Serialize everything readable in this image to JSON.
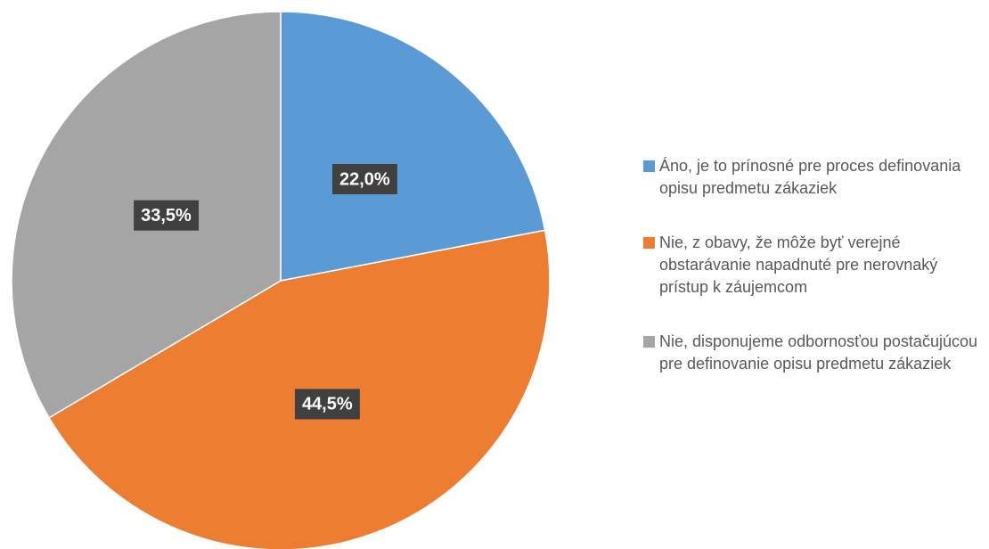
{
  "chart_data": {
    "type": "pie",
    "categories": [
      "Áno, je to prínosné pre proces definovania opisu predmetu zákaziek",
      "Nie, z obavy, že môže byť verejné obstarávanie napadnuté pre nerovnaký prístup k záujemcom",
      "Nie, disponujeme odbornosťou postačujúcou pre definovanie opisu predmetu zákaziek"
    ],
    "values": [
      22.0,
      44.5,
      33.5
    ],
    "value_labels": [
      "22,0%",
      "44,5%",
      "33,5%"
    ],
    "colors": [
      "#5b9bd5",
      "#ed7d31",
      "#a5a5a5"
    ],
    "legend": "right"
  }
}
